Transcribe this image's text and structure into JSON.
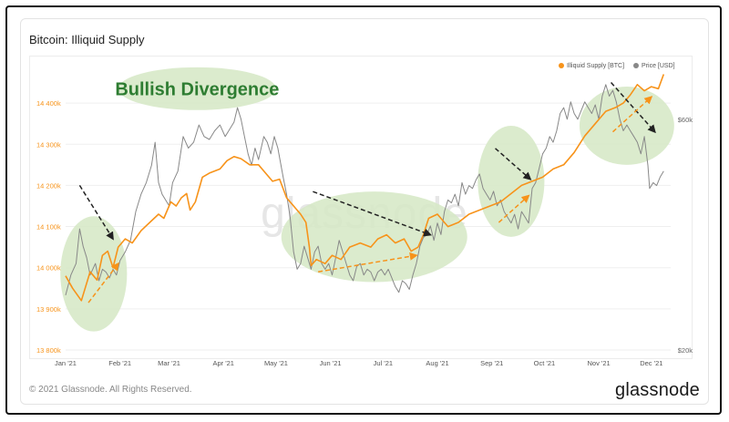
{
  "card": {
    "title": "Bitcoin: Illiquid Supply",
    "copyright": "© 2021 Glassnode. All Rights Reserved.",
    "brand": "glassnode",
    "watermark": "glassnode"
  },
  "chart_data": {
    "type": "line",
    "title": "Bitcoin: Illiquid Supply",
    "annotation": "Bullish Divergence",
    "legend_position": "top-right",
    "colors": {
      "illiquid": "#f7931a",
      "price": "#888888",
      "ellipse": "#d5e8c4",
      "ellipse_text": "#2e7d32"
    },
    "x_ticks": [
      "Jan '21",
      "Feb '21",
      "Mar '21",
      "Apr '21",
      "May '21",
      "Jun '21",
      "Jul '21",
      "Aug '21",
      "Sep '21",
      "Oct '21",
      "Nov '21",
      "Dec '21"
    ],
    "x_range_days": [
      0,
      345
    ],
    "tick_days": [
      0,
      31,
      59,
      90,
      120,
      151,
      181,
      212,
      243,
      273,
      304,
      334
    ],
    "y_left": {
      "range": [
        13800,
        14480
      ],
      "ticks": [
        13800,
        13900,
        14000,
        14100,
        14200,
        14300,
        14400
      ],
      "tick_labels": [
        "13 800k",
        "13 900k",
        "14 000k",
        "14 100k",
        "14 200k",
        "14 300k",
        "14 400k"
      ]
    },
    "y_right": {
      "range": [
        20000,
        68500
      ],
      "ticks": [
        20000,
        60000
      ],
      "tick_labels": [
        "$20k",
        "$60k"
      ]
    },
    "series": [
      {
        "name": "Illiquid Supply [BTC]",
        "axis": "left",
        "points": [
          [
            0,
            13980
          ],
          [
            4,
            13950
          ],
          [
            9,
            13920
          ],
          [
            14,
            13990
          ],
          [
            18,
            13970
          ],
          [
            21,
            14030
          ],
          [
            24,
            14040
          ],
          [
            27,
            14000
          ],
          [
            30,
            14050
          ],
          [
            34,
            14070
          ],
          [
            38,
            14060
          ],
          [
            43,
            14090
          ],
          [
            48,
            14110
          ],
          [
            53,
            14130
          ],
          [
            56,
            14120
          ],
          [
            60,
            14160
          ],
          [
            63,
            14150
          ],
          [
            66,
            14170
          ],
          [
            69,
            14180
          ],
          [
            71,
            14140
          ],
          [
            74,
            14160
          ],
          [
            78,
            14220
          ],
          [
            82,
            14230
          ],
          [
            88,
            14240
          ],
          [
            92,
            14260
          ],
          [
            96,
            14270
          ],
          [
            100,
            14265
          ],
          [
            105,
            14250
          ],
          [
            110,
            14250
          ],
          [
            114,
            14230
          ],
          [
            118,
            14210
          ],
          [
            122,
            14215
          ],
          [
            126,
            14170
          ],
          [
            130,
            14150
          ],
          [
            134,
            14130
          ],
          [
            137,
            14110
          ],
          [
            139,
            14050
          ],
          [
            140,
            14005
          ],
          [
            143,
            14020
          ],
          [
            148,
            14010
          ],
          [
            152,
            14030
          ],
          [
            157,
            14020
          ],
          [
            162,
            14050
          ],
          [
            168,
            14060
          ],
          [
            174,
            14050
          ],
          [
            178,
            14070
          ],
          [
            183,
            14080
          ],
          [
            188,
            14060
          ],
          [
            193,
            14070
          ],
          [
            197,
            14040
          ],
          [
            201,
            14050
          ],
          [
            204,
            14080
          ],
          [
            207,
            14120
          ],
          [
            212,
            14130
          ],
          [
            218,
            14100
          ],
          [
            224,
            14110
          ],
          [
            230,
            14130
          ],
          [
            236,
            14140
          ],
          [
            242,
            14150
          ],
          [
            248,
            14160
          ],
          [
            254,
            14180
          ],
          [
            260,
            14200
          ],
          [
            266,
            14210
          ],
          [
            272,
            14220
          ],
          [
            278,
            14240
          ],
          [
            284,
            14250
          ],
          [
            290,
            14280
          ],
          [
            296,
            14320
          ],
          [
            302,
            14350
          ],
          [
            308,
            14380
          ],
          [
            314,
            14390
          ],
          [
            318,
            14400
          ],
          [
            322,
            14420
          ],
          [
            326,
            14445
          ],
          [
            330,
            14430
          ],
          [
            334,
            14440
          ],
          [
            338,
            14435
          ],
          [
            341,
            14470
          ]
        ]
      },
      {
        "name": "Price [USD]",
        "axis": "right",
        "points": [
          [
            0,
            29500
          ],
          [
            3,
            33000
          ],
          [
            6,
            35000
          ],
          [
            8,
            41000
          ],
          [
            10,
            38000
          ],
          [
            12,
            36000
          ],
          [
            14,
            33000
          ],
          [
            17,
            35000
          ],
          [
            19,
            32000
          ],
          [
            21,
            34000
          ],
          [
            23,
            33500
          ],
          [
            25,
            32500
          ],
          [
            27,
            34000
          ],
          [
            29,
            33000
          ],
          [
            31,
            35500
          ],
          [
            34,
            37000
          ],
          [
            37,
            39000
          ],
          [
            40,
            44000
          ],
          [
            43,
            47000
          ],
          [
            46,
            49000
          ],
          [
            49,
            52000
          ],
          [
            51,
            56000
          ],
          [
            53,
            49000
          ],
          [
            55,
            47000
          ],
          [
            57,
            46000
          ],
          [
            59,
            45000
          ],
          [
            61,
            49000
          ],
          [
            64,
            51000
          ],
          [
            67,
            57000
          ],
          [
            70,
            55000
          ],
          [
            73,
            56000
          ],
          [
            76,
            59000
          ],
          [
            79,
            57000
          ],
          [
            82,
            56500
          ],
          [
            85,
            58000
          ],
          [
            88,
            59000
          ],
          [
            91,
            57000
          ],
          [
            93,
            58000
          ],
          [
            96,
            59500
          ],
          [
            98,
            62000
          ],
          [
            100,
            60000
          ],
          [
            102,
            57000
          ],
          [
            104,
            54000
          ],
          [
            106,
            52000
          ],
          [
            108,
            55000
          ],
          [
            110,
            53000
          ],
          [
            113,
            57000
          ],
          [
            115,
            56000
          ],
          [
            117,
            54000
          ],
          [
            119,
            57000
          ],
          [
            121,
            55000
          ],
          [
            124,
            50000
          ],
          [
            126,
            47000
          ],
          [
            128,
            43000
          ],
          [
            130,
            37000
          ],
          [
            132,
            34000
          ],
          [
            134,
            35000
          ],
          [
            136,
            38000
          ],
          [
            138,
            36000
          ],
          [
            140,
            34000
          ],
          [
            142,
            37000
          ],
          [
            144,
            38000
          ],
          [
            146,
            35000
          ],
          [
            148,
            34000
          ],
          [
            150,
            35000
          ],
          [
            152,
            33000
          ],
          [
            154,
            36000
          ],
          [
            156,
            39000
          ],
          [
            158,
            37000
          ],
          [
            160,
            35000
          ],
          [
            162,
            33000
          ],
          [
            164,
            32000
          ],
          [
            166,
            34500
          ],
          [
            168,
            35000
          ],
          [
            170,
            33000
          ],
          [
            172,
            34000
          ],
          [
            174,
            33500
          ],
          [
            176,
            32000
          ],
          [
            178,
            33500
          ],
          [
            180,
            34000
          ],
          [
            182,
            33000
          ],
          [
            184,
            34000
          ],
          [
            186,
            32500
          ],
          [
            188,
            31000
          ],
          [
            190,
            30000
          ],
          [
            192,
            32000
          ],
          [
            194,
            31500
          ],
          [
            196,
            30500
          ],
          [
            198,
            33000
          ],
          [
            200,
            35000
          ],
          [
            202,
            38000
          ],
          [
            204,
            39500
          ],
          [
            206,
            40000
          ],
          [
            208,
            41500
          ],
          [
            210,
            39000
          ],
          [
            212,
            42000
          ],
          [
            214,
            40000
          ],
          [
            216,
            44000
          ],
          [
            218,
            46000
          ],
          [
            220,
            45500
          ],
          [
            222,
            47000
          ],
          [
            224,
            45000
          ],
          [
            226,
            49000
          ],
          [
            228,
            47000
          ],
          [
            230,
            48500
          ],
          [
            232,
            48000
          ],
          [
            234,
            49500
          ],
          [
            236,
            50500
          ],
          [
            238,
            48000
          ],
          [
            240,
            47000
          ],
          [
            242,
            46000
          ],
          [
            244,
            47500
          ],
          [
            246,
            45000
          ],
          [
            248,
            46000
          ],
          [
            250,
            44000
          ],
          [
            252,
            43000
          ],
          [
            254,
            42000
          ],
          [
            256,
            43500
          ],
          [
            258,
            41000
          ],
          [
            260,
            44000
          ],
          [
            262,
            43000
          ],
          [
            264,
            42000
          ],
          [
            266,
            48000
          ],
          [
            268,
            49000
          ],
          [
            270,
            51500
          ],
          [
            272,
            54000
          ],
          [
            274,
            55000
          ],
          [
            276,
            57000
          ],
          [
            278,
            56000
          ],
          [
            280,
            58000
          ],
          [
            282,
            61000
          ],
          [
            284,
            62000
          ],
          [
            286,
            60000
          ],
          [
            288,
            63000
          ],
          [
            290,
            61000
          ],
          [
            292,
            60000
          ],
          [
            294,
            61500
          ],
          [
            296,
            63000
          ],
          [
            298,
            62000
          ],
          [
            300,
            61000
          ],
          [
            302,
            62500
          ],
          [
            304,
            60000
          ],
          [
            306,
            64000
          ],
          [
            308,
            66000
          ],
          [
            310,
            64000
          ],
          [
            312,
            65000
          ],
          [
            314,
            63000
          ],
          [
            316,
            60000
          ],
          [
            318,
            58000
          ],
          [
            320,
            59000
          ],
          [
            322,
            58000
          ],
          [
            324,
            57000
          ],
          [
            326,
            56000
          ],
          [
            328,
            54000
          ],
          [
            330,
            57000
          ],
          [
            332,
            52000
          ],
          [
            333,
            48000
          ],
          [
            335,
            49000
          ],
          [
            337,
            48500
          ],
          [
            339,
            50000
          ],
          [
            341,
            51000
          ]
        ]
      }
    ],
    "annotation_ellipses": [
      {
        "cx_day": 16,
        "cy_val": 13985,
        "rx_days": 19,
        "ry_val": 140,
        "axis": "left"
      },
      {
        "cx_day": 75,
        "cy_val": 14435,
        "rx_days": 45,
        "ry_val": 52,
        "axis": "left"
      },
      {
        "cx_day": 176,
        "cy_val": 14075,
        "rx_days": 53,
        "ry_val": 110,
        "axis": "left"
      },
      {
        "cx_day": 254,
        "cy_val": 14210,
        "rx_days": 19,
        "ry_val": 135,
        "axis": "left"
      },
      {
        "cx_day": 320,
        "cy_val": 14345,
        "rx_days": 27,
        "ry_val": 95,
        "axis": "left"
      }
    ],
    "annotation_arrows": [
      {
        "color": "#222222",
        "from": [
          8,
          14200
        ],
        "to": [
          27,
          14070
        ]
      },
      {
        "color": "#f7931a",
        "from": [
          13,
          13915
        ],
        "to": [
          30,
          14010
        ]
      },
      {
        "color": "#222222",
        "from": [
          141,
          14185
        ],
        "to": [
          208,
          14080
        ]
      },
      {
        "color": "#f7931a",
        "from": [
          144,
          13990
        ],
        "to": [
          200,
          14030
        ]
      },
      {
        "color": "#222222",
        "from": [
          245,
          14290
        ],
        "to": [
          265,
          14215
        ]
      },
      {
        "color": "#f7931a",
        "from": [
          247,
          14110
        ],
        "to": [
          264,
          14175
        ]
      },
      {
        "color": "#222222",
        "from": [
          311,
          14450
        ],
        "to": [
          336,
          14330
        ]
      },
      {
        "color": "#f7931a",
        "from": [
          312,
          14330
        ],
        "to": [
          334,
          14415
        ]
      }
    ]
  }
}
